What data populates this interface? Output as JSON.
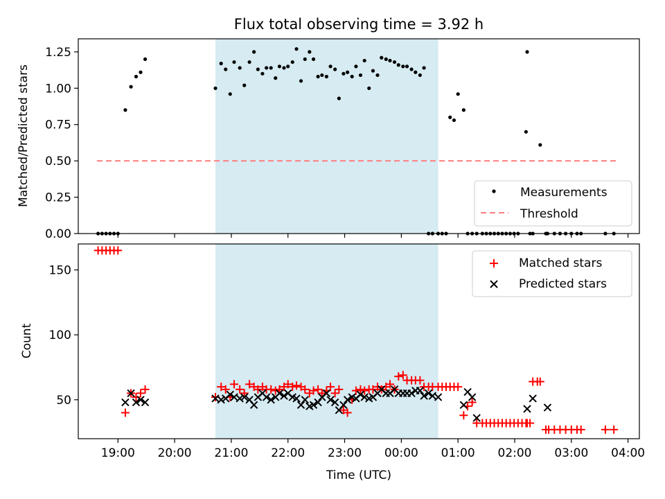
{
  "chart_data": [
    {
      "type": "scatter",
      "title": "Flux total observing time = 3.92 h",
      "ylabel": "Matched/Predicted stars",
      "xlabel": "",
      "xlim": [
        18.3,
        28.2
      ],
      "ylim": [
        0,
        1.34
      ],
      "yticks": [
        0.0,
        0.25,
        0.5,
        0.75,
        1.0,
        1.25
      ],
      "ytick_labels": [
        "0.00",
        "0.25",
        "0.50",
        "0.75",
        "1.00",
        "1.25"
      ],
      "shaded_range": [
        20.72,
        24.65
      ],
      "legend": {
        "position": "bottom-right",
        "entries": [
          "Measurements",
          "Threshold"
        ]
      },
      "threshold": {
        "name": "Threshold",
        "y": 0.5,
        "x_range": [
          18.63,
          27.8
        ],
        "color": "#ff7f7f"
      },
      "series": [
        {
          "name": "Measurements",
          "color": "#000000",
          "x": [
            18.65,
            18.72,
            18.79,
            18.86,
            18.93,
            19.0,
            19.13,
            19.23,
            19.32,
            19.4,
            19.48,
            20.72,
            20.82,
            20.9,
            20.98,
            21.05,
            21.15,
            21.23,
            21.32,
            21.4,
            21.47,
            21.55,
            21.62,
            21.7,
            21.78,
            21.85,
            21.93,
            22.0,
            22.08,
            22.15,
            22.23,
            22.3,
            22.38,
            22.45,
            22.53,
            22.6,
            22.68,
            22.75,
            22.83,
            22.9,
            22.98,
            23.05,
            23.13,
            23.2,
            23.28,
            23.35,
            23.43,
            23.5,
            23.58,
            23.65,
            23.73,
            23.8,
            23.88,
            23.95,
            24.03,
            24.1,
            24.18,
            24.25,
            24.33,
            24.4,
            24.48,
            24.55,
            24.65,
            24.72,
            24.79,
            24.86,
            24.93,
            25.0,
            25.1,
            25.17,
            25.25,
            25.33,
            25.43,
            25.5,
            25.57,
            25.64,
            25.71,
            25.78,
            25.85,
            25.92,
            25.99,
            26.06,
            26.2,
            26.27,
            26.22,
            26.32,
            26.45,
            26.55,
            26.58,
            26.7,
            26.8,
            26.9,
            27.0,
            27.1,
            27.17,
            27.6,
            27.75
          ],
          "y": [
            0.0,
            0.0,
            0.0,
            0.0,
            0.0,
            0.0,
            0.85,
            1.01,
            1.08,
            1.11,
            1.2,
            1.0,
            1.17,
            1.13,
            0.96,
            1.18,
            1.14,
            1.02,
            1.18,
            1.25,
            1.13,
            1.1,
            1.14,
            1.14,
            1.07,
            1.15,
            1.14,
            1.15,
            1.18,
            1.27,
            1.05,
            1.2,
            1.25,
            1.2,
            1.08,
            1.09,
            1.08,
            1.15,
            1.13,
            0.93,
            1.1,
            1.11,
            1.08,
            1.15,
            1.09,
            1.19,
            1.0,
            1.12,
            1.09,
            1.21,
            1.2,
            1.19,
            1.18,
            1.16,
            1.15,
            1.15,
            1.13,
            1.11,
            1.09,
            1.14,
            0.0,
            0.0,
            0.0,
            0.0,
            0.0,
            0.8,
            0.78,
            0.96,
            0.85,
            0.0,
            0.0,
            0.0,
            0.0,
            0.0,
            0.0,
            0.0,
            0.0,
            0.0,
            0.0,
            0.0,
            0.0,
            0.0,
            0.7,
            0.0,
            1.25,
            0.0,
            0.61,
            0.0,
            0.0,
            0.0,
            0.0,
            0.0,
            0.0,
            0.0,
            0.0,
            0.0,
            0.0
          ]
        }
      ]
    },
    {
      "type": "scatter",
      "title": "",
      "ylabel": "Count",
      "xlabel": "Time (UTC)",
      "xlim": [
        18.3,
        28.2
      ],
      "ylim": [
        20,
        170
      ],
      "yticks": [
        50,
        100,
        150
      ],
      "ytick_labels": [
        "50",
        "100",
        "150"
      ],
      "xticks": [
        19,
        20,
        21,
        22,
        23,
        24,
        25,
        26,
        27,
        28
      ],
      "xtick_labels": [
        "19:00",
        "20:00",
        "21:00",
        "22:00",
        "23:00",
        "00:00",
        "01:00",
        "02:00",
        "03:00",
        "04:00"
      ],
      "shaded_range": [
        20.72,
        24.65
      ],
      "legend": {
        "position": "top-right",
        "entries": [
          "Matched stars",
          "Predicted stars"
        ]
      },
      "series": [
        {
          "name": "Matched stars",
          "marker": "+",
          "color": "#ff0000",
          "x": [
            18.65,
            18.72,
            18.79,
            18.86,
            18.93,
            19.0,
            19.13,
            19.23,
            19.32,
            19.4,
            19.48,
            20.72,
            20.82,
            20.9,
            20.98,
            21.05,
            21.15,
            21.23,
            21.32,
            21.4,
            21.47,
            21.55,
            21.62,
            21.7,
            21.78,
            21.85,
            21.93,
            22.0,
            22.08,
            22.15,
            22.23,
            22.3,
            22.38,
            22.45,
            22.53,
            22.6,
            22.68,
            22.75,
            22.83,
            22.9,
            22.98,
            23.05,
            23.13,
            23.2,
            23.28,
            23.35,
            23.43,
            23.5,
            23.58,
            23.65,
            23.73,
            23.8,
            23.88,
            23.95,
            24.03,
            24.1,
            24.18,
            24.25,
            24.33,
            24.4,
            24.48,
            24.55,
            24.65,
            24.72,
            24.79,
            24.86,
            24.93,
            25.0,
            25.1,
            25.17,
            25.25,
            25.33,
            25.43,
            25.5,
            25.57,
            25.64,
            25.71,
            25.78,
            25.85,
            25.92,
            25.99,
            26.06,
            26.13,
            26.2,
            26.27,
            26.22,
            26.32,
            26.4,
            26.45,
            26.55,
            26.6,
            26.7,
            26.8,
            26.9,
            27.0,
            27.1,
            27.17,
            27.6,
            27.75
          ],
          "y": [
            165,
            165,
            165,
            165,
            165,
            165,
            40,
            55,
            52,
            55,
            58,
            52,
            60,
            58,
            52,
            62,
            58,
            55,
            62,
            60,
            58,
            60,
            58,
            58,
            57,
            58,
            60,
            62,
            60,
            61,
            60,
            58,
            55,
            57,
            58,
            55,
            57,
            60,
            55,
            58,
            42,
            40,
            50,
            57,
            58,
            57,
            58,
            58,
            60,
            58,
            60,
            62,
            58,
            68,
            69,
            65,
            65,
            65,
            65,
            60,
            60,
            60,
            60,
            60,
            60,
            60,
            60,
            60,
            38,
            45,
            48,
            32,
            32,
            32,
            32,
            32,
            32,
            32,
            32,
            32,
            32,
            32,
            32,
            32,
            32,
            32,
            64,
            64,
            64,
            27,
            27,
            27,
            27,
            27,
            27,
            27,
            27,
            27,
            27
          ]
        },
        {
          "name": "Predicted stars",
          "marker": "x",
          "color": "#000000",
          "x": [
            19.13,
            19.23,
            19.32,
            19.4,
            19.48,
            20.72,
            20.82,
            20.9,
            20.98,
            21.05,
            21.15,
            21.23,
            21.32,
            21.4,
            21.47,
            21.55,
            21.62,
            21.7,
            21.78,
            21.85,
            21.93,
            22.0,
            22.08,
            22.15,
            22.23,
            22.3,
            22.38,
            22.45,
            22.53,
            22.6,
            22.68,
            22.75,
            22.83,
            22.9,
            22.98,
            23.05,
            23.13,
            23.2,
            23.28,
            23.35,
            23.43,
            23.5,
            23.58,
            23.65,
            23.73,
            23.8,
            23.88,
            23.95,
            24.03,
            24.1,
            24.18,
            24.25,
            24.33,
            24.4,
            24.48,
            24.55,
            24.65,
            25.1,
            25.17,
            25.25,
            25.33,
            26.22,
            26.32,
            26.58
          ],
          "y": [
            48,
            55,
            48,
            50,
            48,
            51,
            50,
            51,
            54,
            52,
            51,
            52,
            50,
            46,
            52,
            55,
            52,
            50,
            52,
            55,
            53,
            55,
            52,
            51,
            46,
            50,
            45,
            46,
            48,
            52,
            55,
            50,
            48,
            42,
            46,
            50,
            52,
            51,
            54,
            52,
            51,
            52,
            55,
            58,
            55,
            55,
            58,
            55,
            55,
            55,
            55,
            57,
            57,
            53,
            55,
            53,
            52,
            46,
            56,
            52,
            36,
            43,
            51,
            44
          ]
        }
      ]
    }
  ]
}
